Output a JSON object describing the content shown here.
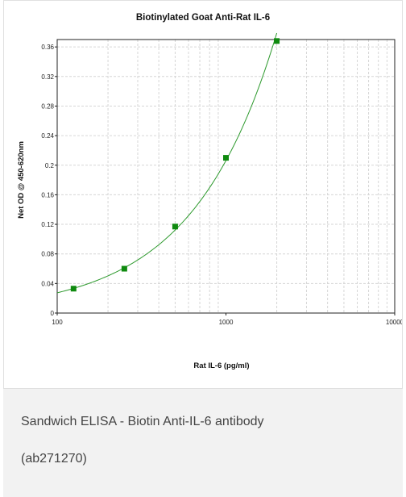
{
  "chart_data": {
    "type": "line",
    "title": "Biotinylated Goat Anti-Rat IL-6",
    "xlabel": "Rat IL-6 (pg/ml)",
    "ylabel": "Net OD @ 450-620nm",
    "xscale": "log",
    "xlim": [
      100,
      10000
    ],
    "ylim": [
      0,
      0.37
    ],
    "x_ticks": [
      "100",
      "1000",
      "10000"
    ],
    "y_ticks": [
      "0",
      "0.04",
      "0.08",
      "0.12",
      "0.16",
      "0.2",
      "0.24",
      "0.28",
      "0.32",
      "0.36"
    ],
    "grid": true,
    "series": [
      {
        "x": [
          125,
          250,
          500,
          1000,
          2000
        ],
        "y": [
          0.033,
          0.06,
          0.117,
          0.21,
          0.368
        ],
        "color": "#2e9a2e",
        "marker_color": "#0f8a0f"
      }
    ]
  },
  "caption": {
    "line1": "Sandwich ELISA - Biotin Anti-IL-6 antibody",
    "line2": "(ab271270)"
  }
}
